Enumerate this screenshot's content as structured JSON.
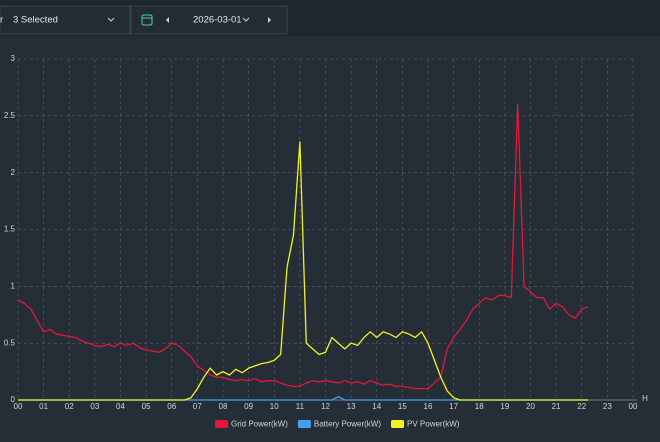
{
  "ui": {
    "filter_prefix": "r",
    "filter_selected": "3 Selected",
    "date": "2026-03-01"
  },
  "chart_data": {
    "type": "line",
    "x_unit": "H",
    "x": [
      0,
      0.25,
      0.5,
      0.75,
      1,
      1.25,
      1.5,
      1.75,
      2,
      2.25,
      2.5,
      2.75,
      3,
      3.25,
      3.5,
      3.75,
      4,
      4.25,
      4.5,
      4.75,
      5,
      5.25,
      5.5,
      5.75,
      6,
      6.25,
      6.5,
      6.75,
      7,
      7.25,
      7.5,
      7.75,
      8,
      8.25,
      8.5,
      8.75,
      9,
      9.25,
      9.5,
      9.75,
      10,
      10.25,
      10.5,
      10.75,
      11,
      11.25,
      11.5,
      11.75,
      12,
      12.25,
      12.5,
      12.75,
      13,
      13.25,
      13.5,
      13.75,
      14,
      14.25,
      14.5,
      14.75,
      15,
      15.25,
      15.5,
      15.75,
      16,
      16.25,
      16.5,
      16.75,
      17,
      17.25,
      17.5,
      17.75,
      18,
      18.25,
      18.5,
      18.75,
      19,
      19.25,
      19.5,
      19.75,
      20,
      20.25,
      20.5,
      20.75,
      21,
      21.25,
      21.5,
      21.75,
      22,
      22.25
    ],
    "series": [
      {
        "name": "Grid Power(kW)",
        "color": "#e5163a",
        "values": [
          0.88,
          0.85,
          0.8,
          0.7,
          0.6,
          0.62,
          0.58,
          0.57,
          0.56,
          0.55,
          0.52,
          0.5,
          0.48,
          0.47,
          0.49,
          0.47,
          0.5,
          0.48,
          0.5,
          0.46,
          0.44,
          0.43,
          0.42,
          0.45,
          0.5,
          0.48,
          0.43,
          0.38,
          0.3,
          0.26,
          0.22,
          0.2,
          0.2,
          0.18,
          0.17,
          0.18,
          0.17,
          0.19,
          0.16,
          0.17,
          0.17,
          0.15,
          0.13,
          0.12,
          0.12,
          0.15,
          0.17,
          0.16,
          0.17,
          0.16,
          0.15,
          0.17,
          0.15,
          0.16,
          0.14,
          0.17,
          0.15,
          0.13,
          0.14,
          0.12,
          0.12,
          0.11,
          0.1,
          0.1,
          0.1,
          0.15,
          0.2,
          0.45,
          0.55,
          0.62,
          0.7,
          0.8,
          0.85,
          0.9,
          0.88,
          0.92,
          0.92,
          0.9,
          2.6,
          1.0,
          0.95,
          0.9,
          0.9,
          0.8,
          0.85,
          0.82,
          0.75,
          0.72,
          0.8,
          0.82
        ]
      },
      {
        "name": "Battery Power(kW)",
        "color": "#3ea3f0",
        "values": [
          0,
          0,
          0,
          0,
          0,
          0,
          0,
          0,
          0,
          0,
          0,
          0,
          0,
          0,
          0,
          0,
          0,
          0,
          0,
          0,
          0,
          0,
          0,
          0,
          0,
          0,
          0,
          0,
          0,
          0,
          0,
          0,
          0,
          0,
          0,
          0,
          0,
          0,
          0,
          0,
          0,
          0,
          0,
          0,
          0,
          0,
          0,
          0,
          0,
          0,
          0.03,
          0,
          0,
          0,
          0,
          0,
          0,
          0,
          0,
          0,
          0,
          0,
          0,
          0,
          0,
          0,
          0,
          0,
          0,
          0,
          0,
          0,
          0,
          0,
          0,
          0,
          0,
          0,
          0,
          0,
          0,
          0,
          0,
          0,
          0,
          0,
          0,
          0,
          0,
          0
        ]
      },
      {
        "name": "PV Power(kW)",
        "color": "#f3f320",
        "values": [
          0,
          0,
          0,
          0,
          0,
          0,
          0,
          0,
          0,
          0,
          0,
          0,
          0,
          0,
          0,
          0,
          0,
          0,
          0,
          0,
          0,
          0,
          0,
          0,
          0,
          0,
          0,
          0.02,
          0.1,
          0.2,
          0.28,
          0.22,
          0.25,
          0.22,
          0.27,
          0.24,
          0.28,
          0.3,
          0.32,
          0.33,
          0.35,
          0.4,
          1.17,
          1.45,
          2.27,
          0.5,
          0.45,
          0.4,
          0.42,
          0.55,
          0.5,
          0.45,
          0.5,
          0.48,
          0.55,
          0.6,
          0.55,
          0.6,
          0.58,
          0.55,
          0.6,
          0.58,
          0.55,
          0.6,
          0.5,
          0.35,
          0.2,
          0.08,
          0.02,
          0,
          0,
          0,
          0,
          0,
          0,
          0,
          0,
          0,
          0,
          0,
          0,
          0,
          0,
          0,
          0,
          0,
          0,
          0,
          0,
          0
        ]
      }
    ],
    "xlim": [
      0,
      24
    ],
    "xticks": [
      {
        "value": 0,
        "label": "00"
      },
      {
        "value": 1,
        "label": "01"
      },
      {
        "value": 2,
        "label": "02"
      },
      {
        "value": 3,
        "label": "03"
      },
      {
        "value": 4,
        "label": "04"
      },
      {
        "value": 5,
        "label": "05"
      },
      {
        "value": 6,
        "label": "06"
      },
      {
        "value": 7,
        "label": "07"
      },
      {
        "value": 8,
        "label": "08"
      },
      {
        "value": 9,
        "label": "09"
      },
      {
        "value": 10,
        "label": "10"
      },
      {
        "value": 11,
        "label": "11"
      },
      {
        "value": 12,
        "label": "12"
      },
      {
        "value": 13,
        "label": "13"
      },
      {
        "value": 14,
        "label": "14"
      },
      {
        "value": 15,
        "label": "15"
      },
      {
        "value": 16,
        "label": "16"
      },
      {
        "value": 17,
        "label": "17"
      },
      {
        "value": 18,
        "label": "18"
      },
      {
        "value": 19,
        "label": "19"
      },
      {
        "value": 20,
        "label": "20"
      },
      {
        "value": 21,
        "label": "21"
      },
      {
        "value": 22,
        "label": "22"
      },
      {
        "value": 23,
        "label": "23"
      },
      {
        "value": 24,
        "label": "00"
      }
    ],
    "ylim": [
      0,
      3
    ],
    "yticks": [
      0,
      0.5,
      1,
      1.5,
      2,
      2.5,
      3
    ],
    "grid": true
  }
}
